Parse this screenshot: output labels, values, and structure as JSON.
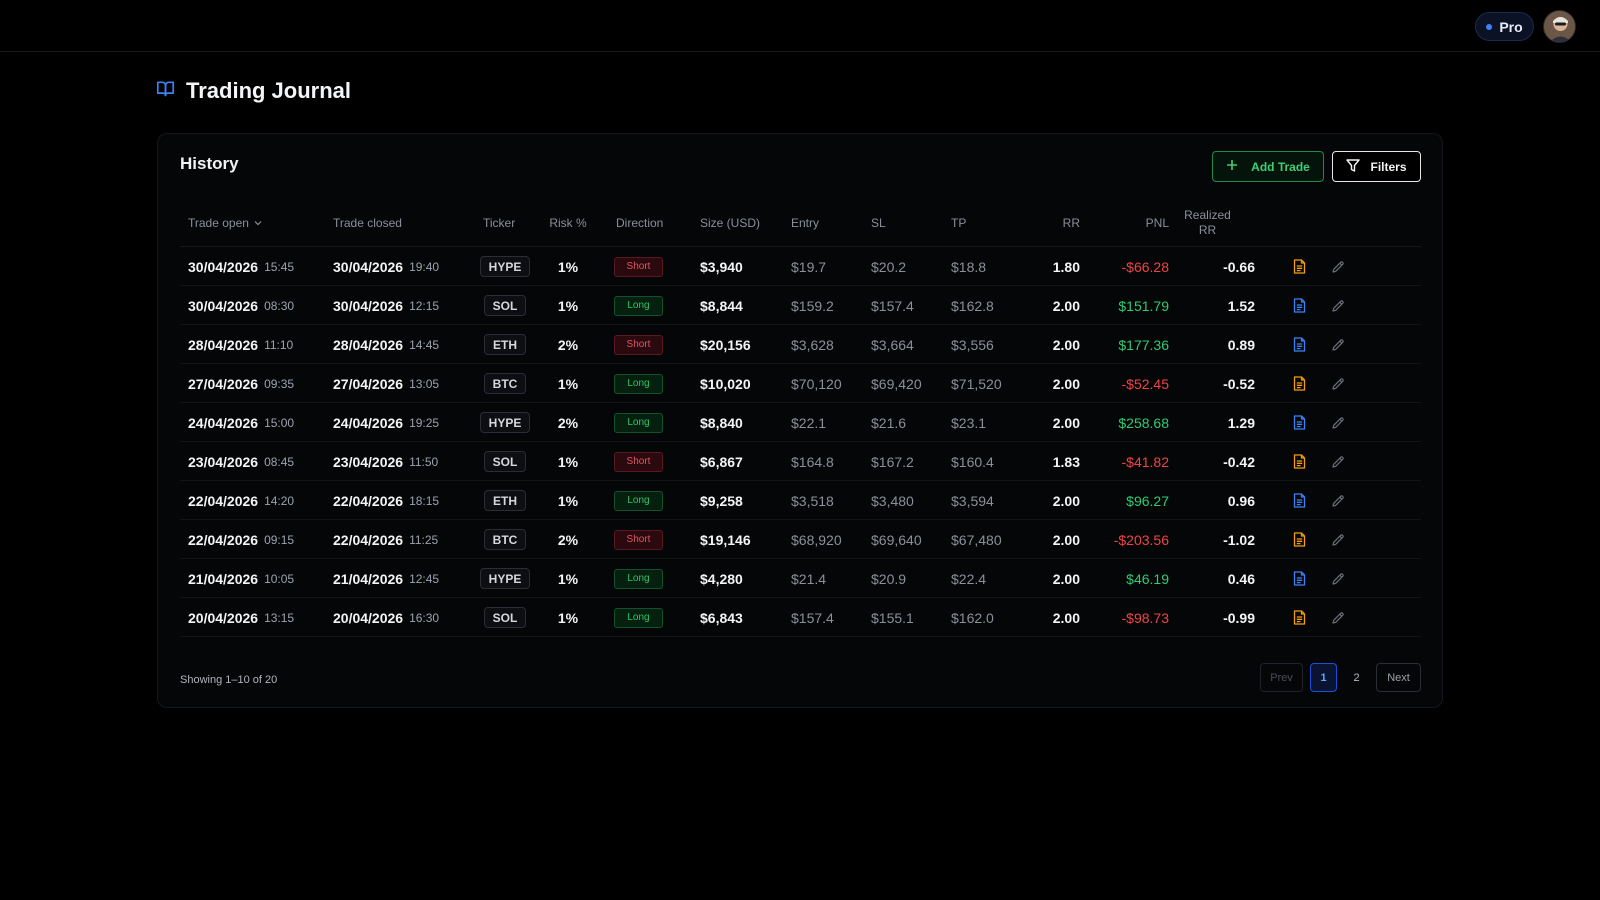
{
  "topbar": {
    "pro_label": "Pro",
    "accent": "#3b82f6"
  },
  "page": {
    "title": "Trading Journal",
    "icon": "book-open-icon"
  },
  "history": {
    "title": "History",
    "add_trade_label": "Add Trade",
    "filters_label": "Filters",
    "columns": {
      "trade_open": "Trade open",
      "trade_closed": "Trade closed",
      "ticker": "Ticker",
      "risk": "Risk %",
      "direction": "Direction",
      "size": "Size (USD)",
      "entry": "Entry",
      "sl": "SL",
      "tp": "TP",
      "rr": "RR",
      "pnl": "PNL",
      "realized_rr": "Realized RR"
    },
    "rows": [
      {
        "open_date": "30/04/2026",
        "open_time": "15:45",
        "close_date": "30/04/2026",
        "close_time": "19:40",
        "ticker": "HYPE",
        "risk": "1%",
        "direction": "Short",
        "size": "$3,940",
        "entry": "$19.7",
        "sl": "$20.2",
        "tp": "$18.8",
        "rr": "1.80",
        "pnl": "-$66.28",
        "realized_rr": "-0.66"
      },
      {
        "open_date": "30/04/2026",
        "open_time": "08:30",
        "close_date": "30/04/2026",
        "close_time": "12:15",
        "ticker": "SOL",
        "risk": "1%",
        "direction": "Long",
        "size": "$8,844",
        "entry": "$159.2",
        "sl": "$157.4",
        "tp": "$162.8",
        "rr": "2.00",
        "pnl": "$151.79",
        "realized_rr": "1.52"
      },
      {
        "open_date": "28/04/2026",
        "open_time": "11:10",
        "close_date": "28/04/2026",
        "close_time": "14:45",
        "ticker": "ETH",
        "risk": "2%",
        "direction": "Short",
        "size": "$20,156",
        "entry": "$3,628",
        "sl": "$3,664",
        "tp": "$3,556",
        "rr": "2.00",
        "pnl": "$177.36",
        "realized_rr": "0.89"
      },
      {
        "open_date": "27/04/2026",
        "open_time": "09:35",
        "close_date": "27/04/2026",
        "close_time": "13:05",
        "ticker": "BTC",
        "risk": "1%",
        "direction": "Long",
        "size": "$10,020",
        "entry": "$70,120",
        "sl": "$69,420",
        "tp": "$71,520",
        "rr": "2.00",
        "pnl": "-$52.45",
        "realized_rr": "-0.52"
      },
      {
        "open_date": "24/04/2026",
        "open_time": "15:00",
        "close_date": "24/04/2026",
        "close_time": "19:25",
        "ticker": "HYPE",
        "risk": "2%",
        "direction": "Long",
        "size": "$8,840",
        "entry": "$22.1",
        "sl": "$21.6",
        "tp": "$23.1",
        "rr": "2.00",
        "pnl": "$258.68",
        "realized_rr": "1.29"
      },
      {
        "open_date": "23/04/2026",
        "open_time": "08:45",
        "close_date": "23/04/2026",
        "close_time": "11:50",
        "ticker": "SOL",
        "risk": "1%",
        "direction": "Short",
        "size": "$6,867",
        "entry": "$164.8",
        "sl": "$167.2",
        "tp": "$160.4",
        "rr": "1.83",
        "pnl": "-$41.82",
        "realized_rr": "-0.42"
      },
      {
        "open_date": "22/04/2026",
        "open_time": "14:20",
        "close_date": "22/04/2026",
        "close_time": "18:15",
        "ticker": "ETH",
        "risk": "1%",
        "direction": "Long",
        "size": "$9,258",
        "entry": "$3,518",
        "sl": "$3,480",
        "tp": "$3,594",
        "rr": "2.00",
        "pnl": "$96.27",
        "realized_rr": "0.96"
      },
      {
        "open_date": "22/04/2026",
        "open_time": "09:15",
        "close_date": "22/04/2026",
        "close_time": "11:25",
        "ticker": "BTC",
        "risk": "2%",
        "direction": "Short",
        "size": "$19,146",
        "entry": "$68,920",
        "sl": "$69,640",
        "tp": "$67,480",
        "rr": "2.00",
        "pnl": "-$203.56",
        "realized_rr": "-1.02"
      },
      {
        "open_date": "21/04/2026",
        "open_time": "10:05",
        "close_date": "21/04/2026",
        "close_time": "12:45",
        "ticker": "HYPE",
        "risk": "1%",
        "direction": "Long",
        "size": "$4,280",
        "entry": "$21.4",
        "sl": "$20.9",
        "tp": "$22.4",
        "rr": "2.00",
        "pnl": "$46.19",
        "realized_rr": "0.46"
      },
      {
        "open_date": "20/04/2026",
        "open_time": "13:15",
        "close_date": "20/04/2026",
        "close_time": "16:30",
        "ticker": "SOL",
        "risk": "1%",
        "direction": "Long",
        "size": "$6,843",
        "entry": "$157.4",
        "sl": "$155.1",
        "tp": "$162.0",
        "rr": "2.00",
        "pnl": "-$98.73",
        "realized_rr": "-0.99"
      }
    ],
    "showing_text": "Showing 1–10 of 20",
    "pagination": {
      "prev": "Prev",
      "pages": [
        "1",
        "2"
      ],
      "current": "1",
      "next": "Next"
    },
    "colors": {
      "positive": "#2ecc71",
      "negative": "#ef4444",
      "note_loss": "#f59e0b",
      "note_win": "#3b82f6"
    }
  }
}
